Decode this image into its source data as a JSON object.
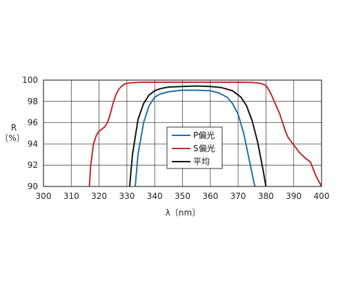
{
  "chart_data": {
    "type": "line",
    "xlabel": "λ〔nm〕",
    "ylabel_line1": "R",
    "ylabel_line2": "〔%〕",
    "xlim": [
      300,
      400
    ],
    "ylim": [
      90,
      100
    ],
    "xticks": [
      "300",
      "310",
      "320",
      "330",
      "340",
      "350",
      "360",
      "370",
      "380",
      "390",
      "400"
    ],
    "yticks": [
      "90",
      "92",
      "94",
      "96",
      "98",
      "100"
    ],
    "grid": true,
    "legend_position": "center",
    "series": [
      {
        "name": "P偏光",
        "color": "#1f6fa8",
        "x": [
          333.0,
          334.0,
          336.0,
          338.0,
          340.0,
          342.0,
          345.0,
          348.0,
          350.0,
          355.0,
          360.0,
          363.0,
          366.0,
          368.0,
          370.0,
          372.0,
          374.0,
          376.0
        ],
        "y": [
          90.0,
          93.0,
          96.0,
          97.6,
          98.4,
          98.7,
          98.9,
          99.0,
          99.05,
          99.05,
          99.0,
          98.8,
          98.4,
          97.8,
          96.8,
          95.0,
          92.5,
          90.0
        ]
      },
      {
        "name": "S偏光",
        "color": "#c0262d",
        "x": [
          316.5,
          317.0,
          318.0,
          319.0,
          320.0,
          322.0,
          323.0,
          324.0,
          325.0,
          326.0,
          327.0,
          328.0,
          329.0,
          330.0,
          332.0,
          335.0,
          340.0,
          350.0,
          360.0,
          370.0,
          375.0,
          378.0,
          380.0,
          381.0,
          382.0,
          383.0,
          384.0,
          385.0,
          386.0,
          387.0,
          388.0,
          390.0,
          392.0,
          394.0,
          396.0,
          398.0,
          400.0
        ],
        "y": [
          90.0,
          92.0,
          94.0,
          94.8,
          95.2,
          95.6,
          96.0,
          96.8,
          97.8,
          98.6,
          99.1,
          99.4,
          99.6,
          99.7,
          99.75,
          99.8,
          99.8,
          99.8,
          99.8,
          99.8,
          99.78,
          99.7,
          99.5,
          99.1,
          98.6,
          98.0,
          97.4,
          96.8,
          96.0,
          95.2,
          94.6,
          93.9,
          93.2,
          92.7,
          92.3,
          91.0,
          90.0
        ]
      },
      {
        "name": "平均",
        "color": "#111111",
        "x": [
          331.0,
          332.0,
          334.0,
          336.0,
          338.0,
          340.0,
          342.0,
          345.0,
          350.0,
          355.0,
          360.0,
          364.0,
          368.0,
          371.0,
          373.0,
          375.0,
          377.0,
          379.0,
          380.0
        ],
        "y": [
          90.0,
          93.0,
          96.3,
          97.8,
          98.6,
          99.0,
          99.2,
          99.35,
          99.4,
          99.45,
          99.4,
          99.3,
          99.0,
          98.4,
          97.6,
          96.2,
          94.2,
          91.5,
          90.0
        ]
      }
    ]
  }
}
